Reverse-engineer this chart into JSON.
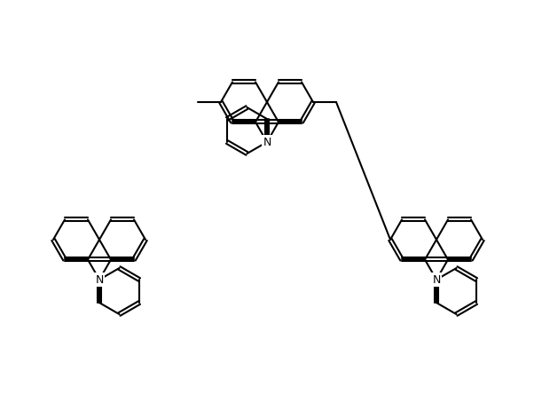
{
  "background_color": "#ffffff",
  "bond_color": "#000000",
  "lw": 1.5,
  "figsize": [
    6.02,
    4.45
  ],
  "dpi": 100,
  "N_label": "N",
  "font_size": 9
}
